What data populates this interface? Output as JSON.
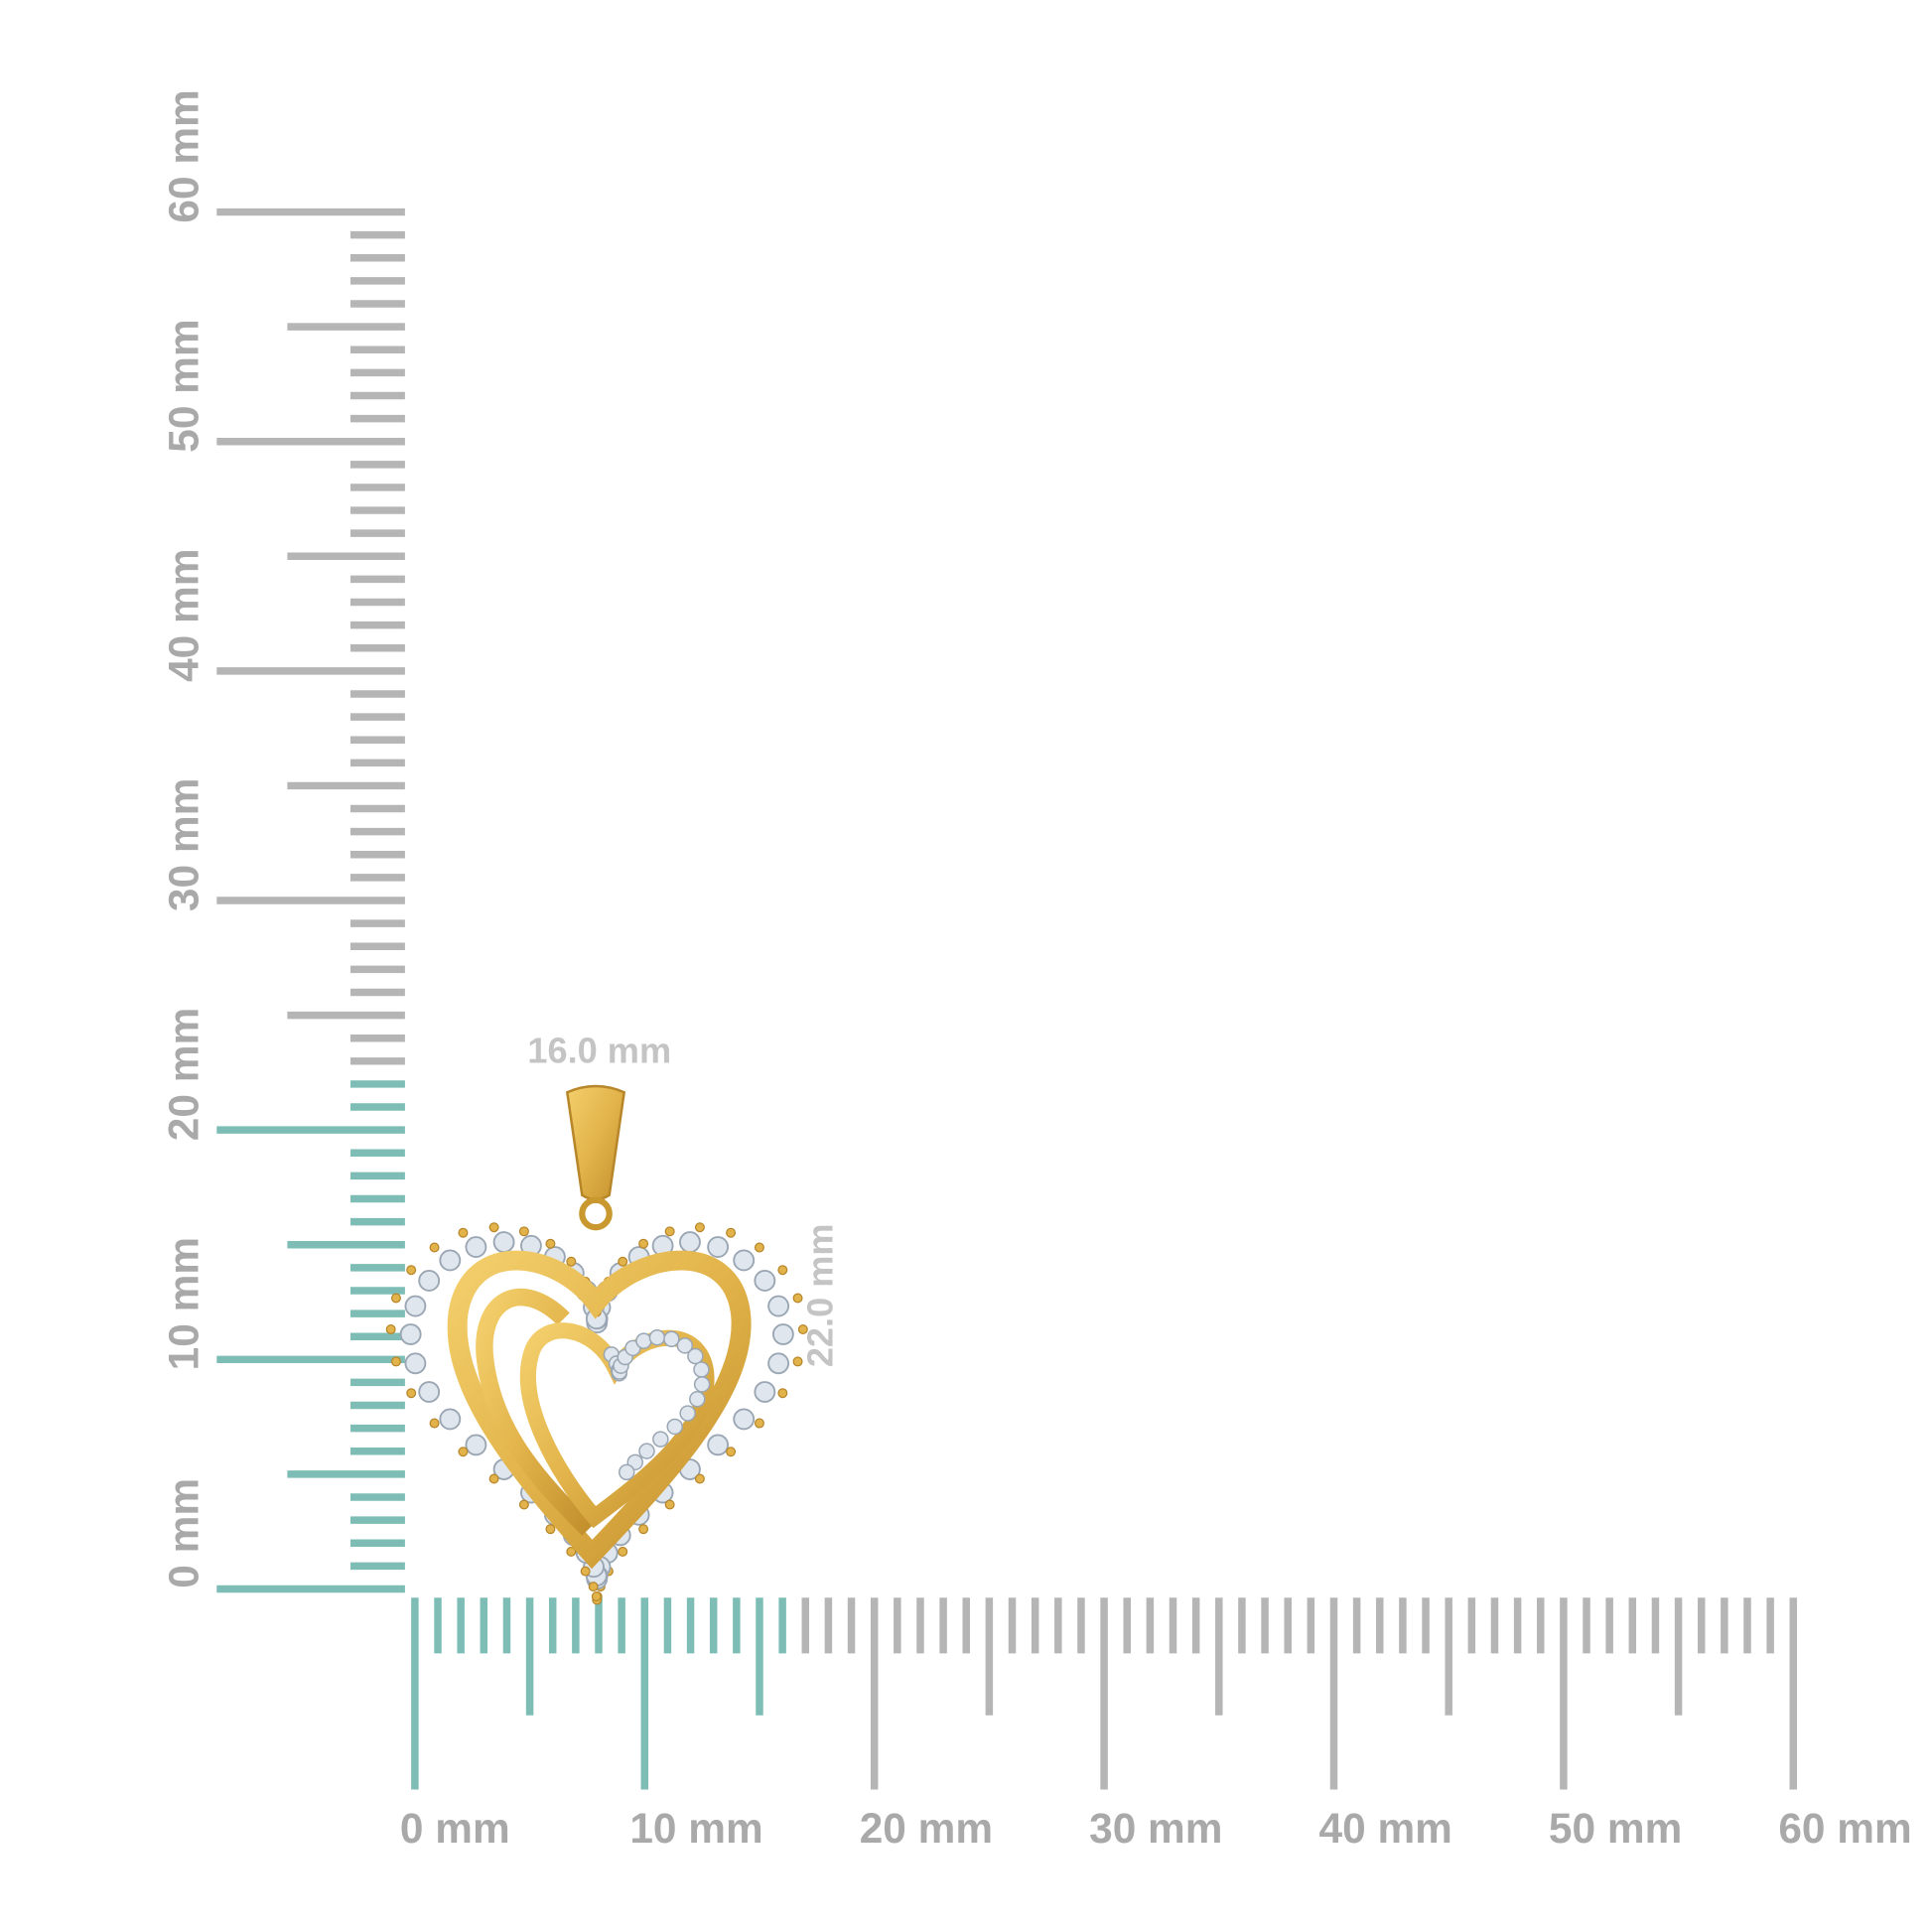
{
  "colors": {
    "highlight": "#7dbdb6",
    "tick": "#b5b5b5",
    "label": "#a9a9a9",
    "dimension": "#c4c4c4",
    "gold": "#e2b34a",
    "gold_dark": "#b7862a",
    "stone": "#dfe6ee"
  },
  "vertical_ruler": {
    "unit": "mm",
    "max_mm": 60,
    "highlight_to_mm": 22,
    "labels": [
      "0 mm",
      "10 mm",
      "20 mm",
      "30 mm",
      "40 mm",
      "50 mm",
      "60 mm"
    ]
  },
  "horizontal_ruler": {
    "unit": "mm",
    "max_mm": 60,
    "highlight_to_mm": 16,
    "labels": [
      "0 mm",
      "10 mm",
      "20 mm",
      "30 mm",
      "40 mm",
      "50 mm",
      "60 mm"
    ]
  },
  "dimensions": {
    "width_label": "16.0 mm",
    "height_label": "22.0 mm"
  },
  "product": {
    "name_icon": "heart-pendant-icon"
  }
}
